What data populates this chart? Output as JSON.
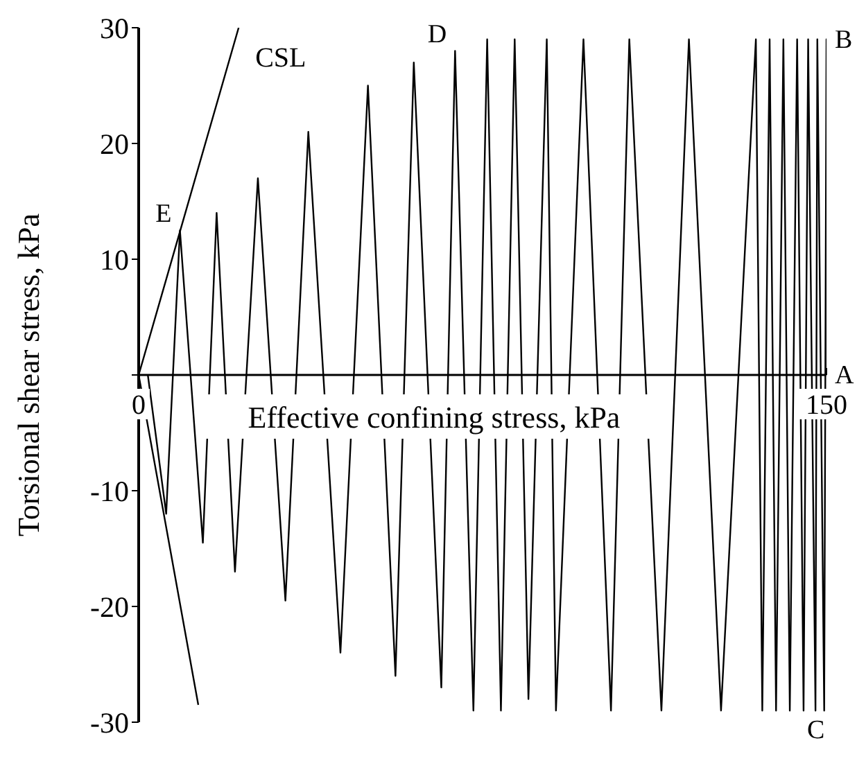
{
  "chart_data": {
    "type": "line",
    "xlabel": "Effective confining stress, kPa",
    "ylabel": "Torsional shear stress, kPa",
    "xlim": [
      0,
      150
    ],
    "xticks": [
      0,
      150
    ],
    "ylim": [
      -30,
      30
    ],
    "yticks": [
      -30,
      -20,
      -10,
      {
        "value": 0,
        "label": null
      },
      10,
      20,
      30
    ],
    "marker": "none",
    "line_style": "solid",
    "series": [
      {
        "color": "#000000",
        "x": [
          150,
          150,
          149.5,
          148,
          147.6,
          146,
          145,
          143.6,
          142,
          140.6,
          139,
          137.6,
          136,
          134.6,
          127,
          120,
          114,
          107,
          103,
          97,
          91,
          89,
          85,
          82,
          79,
          76,
          73,
          69,
          66,
          60,
          56,
          50,
          44,
          37,
          32,
          26,
          21,
          17,
          14,
          9,
          6,
          2
        ],
        "values": [
          0,
          29,
          -29,
          29,
          -29,
          29,
          -29,
          29,
          -29,
          29,
          -29,
          29,
          -29,
          29,
          -29,
          29,
          -29,
          29,
          -29,
          29,
          -29,
          29,
          -28,
          29,
          -29,
          29,
          -29,
          28,
          -27,
          27,
          -26,
          25,
          -24,
          21,
          -19.5,
          17,
          -17,
          14,
          -14.5,
          12.5,
          -12,
          0
        ]
      },
      {
        "name": "CSL",
        "color": "#000000",
        "x": [
          13,
          0,
          21.8
        ],
        "values": [
          -28.5,
          0,
          30
        ]
      }
    ],
    "annotations": [
      {
        "text": "A",
        "x": 150,
        "y": 0
      },
      {
        "text": "B",
        "x": 150,
        "y": 29
      },
      {
        "text": "C",
        "x": 149.5,
        "y": -29
      },
      {
        "text": "D",
        "x": 69,
        "y": 28
      },
      {
        "text": "E",
        "x": 9,
        "y": 12.5
      }
    ]
  }
}
